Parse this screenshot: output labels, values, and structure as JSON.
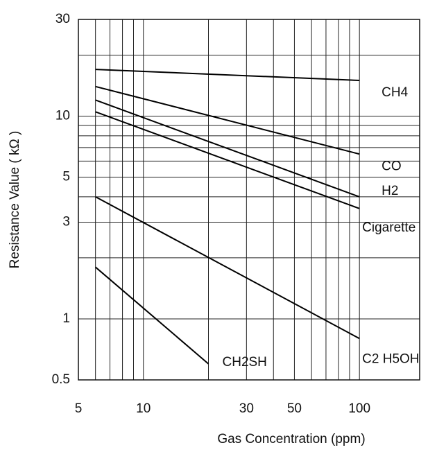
{
  "chart_data": {
    "type": "line",
    "x_label": "Gas Concentration (ppm)",
    "y_label": "Resistance Value ( kΩ )",
    "xscale": "log",
    "yscale": "log",
    "xlim": [
      5,
      190
    ],
    "ylim": [
      0.5,
      30
    ],
    "xticks": [
      5,
      10,
      30,
      50,
      100
    ],
    "yticks": [
      0.5,
      1,
      3,
      5,
      10,
      30
    ],
    "x_minor_ticks": [
      6,
      7,
      8,
      9,
      20,
      40,
      60,
      70,
      80,
      90
    ],
    "y_minor_ticks": [
      2,
      4,
      6,
      7,
      8,
      9,
      20
    ],
    "grid": true,
    "series": [
      {
        "name": "CH4",
        "color": "#000000",
        "x": [
          6,
          100
        ],
        "values": [
          17,
          15
        ]
      },
      {
        "name": "CO",
        "color": "#000000",
        "x": [
          6,
          100
        ],
        "values": [
          14,
          6.5
        ]
      },
      {
        "name": "H2",
        "color": "#000000",
        "x": [
          6,
          100
        ],
        "values": [
          12,
          4
        ]
      },
      {
        "name": "Cigarette",
        "color": "#000000",
        "x": [
          6,
          100
        ],
        "values": [
          10.5,
          3.5
        ]
      },
      {
        "name": "C2 H5OH",
        "color": "#000000",
        "x": [
          6,
          100
        ],
        "values": [
          4,
          0.8
        ]
      },
      {
        "name": "CH2SH",
        "color": "#000000",
        "x": [
          6,
          20
        ],
        "values": [
          1.8,
          0.6
        ]
      }
    ]
  }
}
